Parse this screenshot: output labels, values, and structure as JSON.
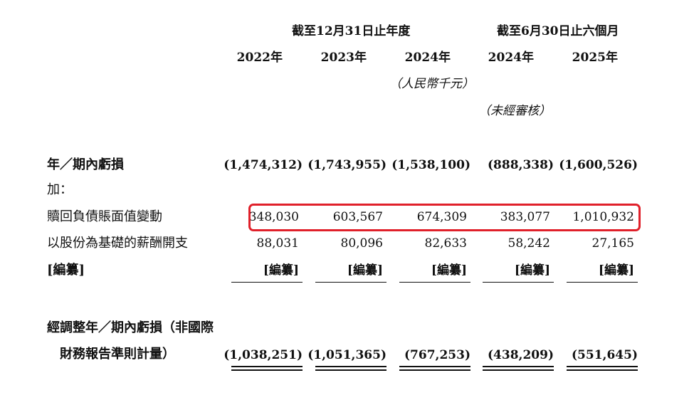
{
  "header": {
    "group1": "截至12月31日止年度",
    "group2": "截至6月30日止六個月",
    "years": [
      "2022年",
      "2023年",
      "2024年",
      "2024年",
      "2025年"
    ],
    "unit": "（人民幣千元）",
    "unaudited": "（未經審核）"
  },
  "rows": {
    "loss": {
      "label": "年／期內虧損",
      "values": [
        "(1,474,312)",
        "(1,743,955)",
        "(1,538,100)",
        "(888,338)",
        "(1,600,526)"
      ]
    },
    "add": {
      "label": "加："
    },
    "redemption": {
      "label": "贖回負債賬面值變動",
      "values": [
        "348,030",
        "603,567",
        "674,309",
        "383,077",
        "1,010,932"
      ]
    },
    "share_comp": {
      "label": "以股份為基礎的薪酬開支",
      "values": [
        "88,031",
        "80,096",
        "82,633",
        "58,242",
        "27,165"
      ]
    },
    "redacted": {
      "label": "[編纂]",
      "values": [
        "[編纂]",
        "[編纂]",
        "[編纂]",
        "[編纂]",
        "[編纂]"
      ]
    },
    "adjusted": {
      "label_line1": "經調整年／期內虧損（非國際",
      "label_line2": "財務報告準則計量）",
      "values": [
        "(1,038,251)",
        "(1,051,365)",
        "(767,253)",
        "(438,209)",
        "(551,645)"
      ]
    }
  },
  "colors": {
    "highlight": "#e0202a",
    "text": "#111111"
  }
}
